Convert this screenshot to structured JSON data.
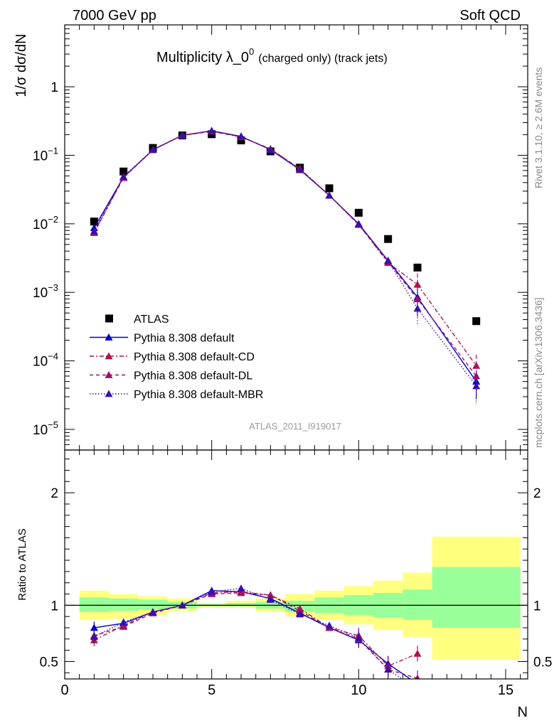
{
  "header": {
    "left": "7000 GeV pp",
    "right": "Soft QCD"
  },
  "title": {
    "main": "Multiplicity λ_0",
    "superscript": "0",
    "suffix": "(charged only) (track jets)"
  },
  "side_labels": {
    "rivet": "Rivet 3.1.10, ≥ 2.6M events",
    "mcplots": "mcplots.cern.ch [arXiv:1306.3436]"
  },
  "watermark": "ATLAS_2011_I919017",
  "colors": {
    "atlas": "#000000",
    "default": "#0000cc",
    "cd": "#b0124e",
    "dl": "#a0106a",
    "mbr": "#3a10a8",
    "band_yellow": "#ffff80",
    "band_green": "#99ff99"
  },
  "chart_data": [
    {
      "type": "scatter",
      "panel": "main",
      "ylabel": "1/σ dσ/dN",
      "yscale": "log",
      "xlim": [
        0,
        15.75
      ],
      "ylim": [
        5e-06,
        8
      ],
      "y_ticks": [
        {
          "label": "10",
          "exp": "−5"
        },
        {
          "label": "10",
          "exp": "−4"
        },
        {
          "label": "10",
          "exp": "−3"
        },
        {
          "label": "10",
          "exp": "−2"
        },
        {
          "label": "10",
          "exp": "−1"
        },
        {
          "label": "1",
          "exp": ""
        }
      ],
      "legend_position": "lower-left",
      "series": [
        {
          "name": "ATLAS",
          "x": [
            1,
            2,
            3,
            4,
            5,
            6,
            7,
            8,
            9,
            10,
            11,
            12,
            14
          ],
          "y": [
            0.0108,
            0.058,
            0.128,
            0.195,
            0.203,
            0.165,
            0.114,
            0.066,
            0.033,
            0.0145,
            0.006,
            0.0023,
            0.00038
          ]
        },
        {
          "name": "Pythia 8.308 default",
          "x": [
            1,
            2,
            3,
            4,
            5,
            6,
            7,
            8,
            9,
            10,
            11,
            12,
            14
          ],
          "y": [
            0.0087,
            0.048,
            0.12,
            0.196,
            0.228,
            0.188,
            0.121,
            0.062,
            0.026,
            0.01,
            0.0029,
            0.00085,
            5e-05
          ]
        },
        {
          "name": "Pythia 8.308 default-CD",
          "x": [
            1,
            2,
            3,
            4,
            5,
            6,
            7,
            8,
            9,
            10,
            11,
            12,
            14
          ],
          "y": [
            0.0075,
            0.0475,
            0.121,
            0.197,
            0.225,
            0.185,
            0.123,
            0.064,
            0.026,
            0.0098,
            0.0027,
            0.0013,
            8.5e-05
          ]
        },
        {
          "name": "Pythia 8.308 default-DL",
          "x": [
            1,
            2,
            3,
            4,
            5,
            6,
            7,
            8,
            9,
            10,
            11,
            12,
            14
          ],
          "y": [
            0.0074,
            0.047,
            0.12,
            0.195,
            0.223,
            0.186,
            0.124,
            0.063,
            0.026,
            0.0097,
            0.0028,
            0.0008,
            6e-05
          ]
        },
        {
          "name": "Pythia 8.308 default-MBR",
          "x": [
            1,
            2,
            3,
            4,
            5,
            6,
            7,
            8,
            9,
            10,
            11,
            12,
            14
          ],
          "y": [
            0.0078,
            0.049,
            0.121,
            0.195,
            0.227,
            0.19,
            0.12,
            0.061,
            0.026,
            0.0099,
            0.0029,
            0.00058,
            4.3e-05
          ]
        }
      ]
    },
    {
      "type": "line",
      "panel": "ratio",
      "xlabel": "N",
      "ylabel": "Ratio to ATLAS",
      "xlim": [
        0,
        15.75
      ],
      "ylim": [
        0.345,
        2.38
      ],
      "x_ticks": [
        "0",
        "5",
        "10",
        "15"
      ],
      "y_ticks": [
        "0.5",
        "1",
        "2"
      ],
      "bands": {
        "edges": [
          0.5,
          1.5,
          2.5,
          3.5,
          4.5,
          5.5,
          6.5,
          7.5,
          8.5,
          9.5,
          10.5,
          11.5,
          12.5,
          15.5
        ],
        "green": [
          [
            0.94,
            1.07
          ],
          [
            0.95,
            1.06
          ],
          [
            0.96,
            1.05
          ],
          [
            0.97,
            1.03
          ],
          [
            0.99,
            1.01
          ],
          [
            0.99,
            1.02
          ],
          [
            0.97,
            1.03
          ],
          [
            0.94,
            1.04
          ],
          [
            0.93,
            1.07
          ],
          [
            0.91,
            1.09
          ],
          [
            0.89,
            1.11
          ],
          [
            0.87,
            1.14
          ],
          [
            0.8,
            1.34
          ]
        ],
        "yellow": [
          [
            0.87,
            1.13
          ],
          [
            0.88,
            1.1
          ],
          [
            0.91,
            1.08
          ],
          [
            0.95,
            1.06
          ],
          [
            0.98,
            1.02
          ],
          [
            0.98,
            1.04
          ],
          [
            0.94,
            1.06
          ],
          [
            0.9,
            1.1
          ],
          [
            0.87,
            1.13
          ],
          [
            0.83,
            1.17
          ],
          [
            0.78,
            1.22
          ],
          [
            0.72,
            1.29
          ],
          [
            0.52,
            1.61
          ]
        ]
      },
      "series": [
        {
          "name": "Pythia 8.308 default",
          "x": [
            1,
            2,
            3,
            4,
            5,
            6,
            7,
            8,
            9,
            10,
            11,
            12
          ],
          "y": [
            0.8,
            0.84,
            0.94,
            1.0,
            1.13,
            1.12,
            1.06,
            0.93,
            0.8,
            0.69,
            0.48,
            0.3
          ]
        },
        {
          "name": "Pythia 8.308 default-CD",
          "x": [
            1,
            2,
            3,
            4,
            5,
            6,
            7,
            8,
            9,
            10,
            11,
            12
          ],
          "y": [
            0.69,
            0.82,
            0.94,
            1.0,
            1.11,
            1.12,
            1.09,
            0.97,
            0.8,
            0.73,
            0.46,
            0.57
          ]
        },
        {
          "name": "Pythia 8.308 default-DL",
          "x": [
            1,
            2,
            3,
            4,
            5,
            6,
            7,
            8,
            9,
            10,
            11,
            12
          ],
          "y": [
            0.73,
            0.81,
            0.93,
            1.0,
            1.1,
            1.11,
            1.09,
            0.95,
            0.8,
            0.7,
            0.43,
            0.35
          ]
        },
        {
          "name": "Pythia 8.308 default-MBR",
          "x": [
            1,
            2,
            3,
            4,
            5,
            6,
            7,
            8,
            9,
            10,
            11,
            12
          ],
          "y": [
            0.72,
            0.85,
            0.94,
            1.0,
            1.12,
            1.15,
            1.05,
            0.92,
            0.82,
            0.71,
            0.43,
            0.25
          ]
        }
      ]
    }
  ]
}
